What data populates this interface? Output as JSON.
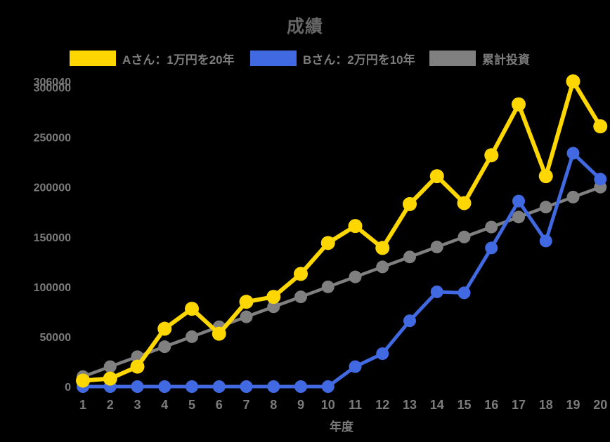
{
  "page": {
    "background": "#000000",
    "title_color": "#666666",
    "axis_text_color": "#7b7b7b"
  },
  "chart_data": {
    "type": "line",
    "title": "成績",
    "xlabel": "年度",
    "ylabel": "",
    "x": [
      1,
      2,
      3,
      4,
      5,
      6,
      7,
      8,
      9,
      10,
      11,
      12,
      13,
      14,
      15,
      16,
      17,
      18,
      19,
      20
    ],
    "ylim": [
      0,
      306040
    ],
    "yticks": [
      0,
      50000,
      100000,
      150000,
      200000,
      250000,
      300000,
      306040
    ],
    "grid": false,
    "legend_position": "top",
    "series": [
      {
        "name": "Aさん：1万円を20年",
        "color": "#FFD700",
        "values": [
          6000,
          8000,
          20000,
          58000,
          78000,
          53000,
          85000,
          90000,
          113000,
          144000,
          161000,
          139000,
          183000,
          211000,
          184000,
          232000,
          283000,
          211000,
          306040,
          261000
        ]
      },
      {
        "name": "Bさん：2万円を10年",
        "color": "#4169E1",
        "values": [
          0,
          0,
          0,
          0,
          0,
          0,
          0,
          0,
          0,
          0,
          20000,
          33000,
          66000,
          95000,
          94000,
          139000,
          186000,
          146000,
          234000,
          208000
        ]
      },
      {
        "name": "累計投資",
        "color": "#808080",
        "values": [
          10000,
          20000,
          30000,
          40000,
          50000,
          60000,
          70000,
          80000,
          90000,
          100000,
          110000,
          120000,
          130000,
          140000,
          150000,
          160000,
          170000,
          180000,
          190000,
          200000
        ]
      }
    ]
  }
}
